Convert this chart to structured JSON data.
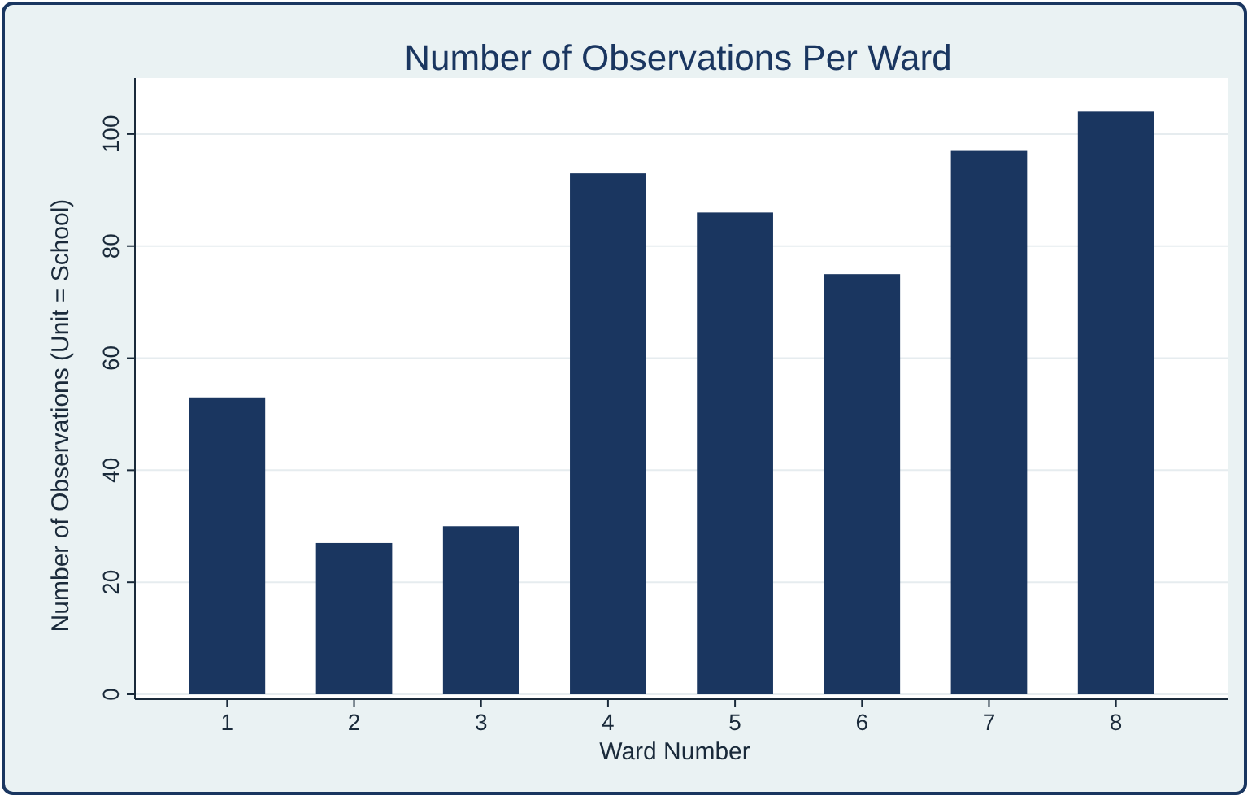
{
  "chart_data": {
    "type": "bar",
    "title": "Number of Observations Per Ward",
    "xlabel": "Ward Number",
    "ylabel": "Number of Observations (Unit = School)",
    "categories": [
      "1",
      "2",
      "3",
      "4",
      "5",
      "6",
      "7",
      "8"
    ],
    "values": [
      53,
      27,
      30,
      93,
      86,
      75,
      97,
      104
    ],
    "color": "#1a3660",
    "ylim": [
      0,
      110
    ],
    "yticks": [
      0,
      20,
      40,
      60,
      80,
      100
    ],
    "grid": "y"
  }
}
